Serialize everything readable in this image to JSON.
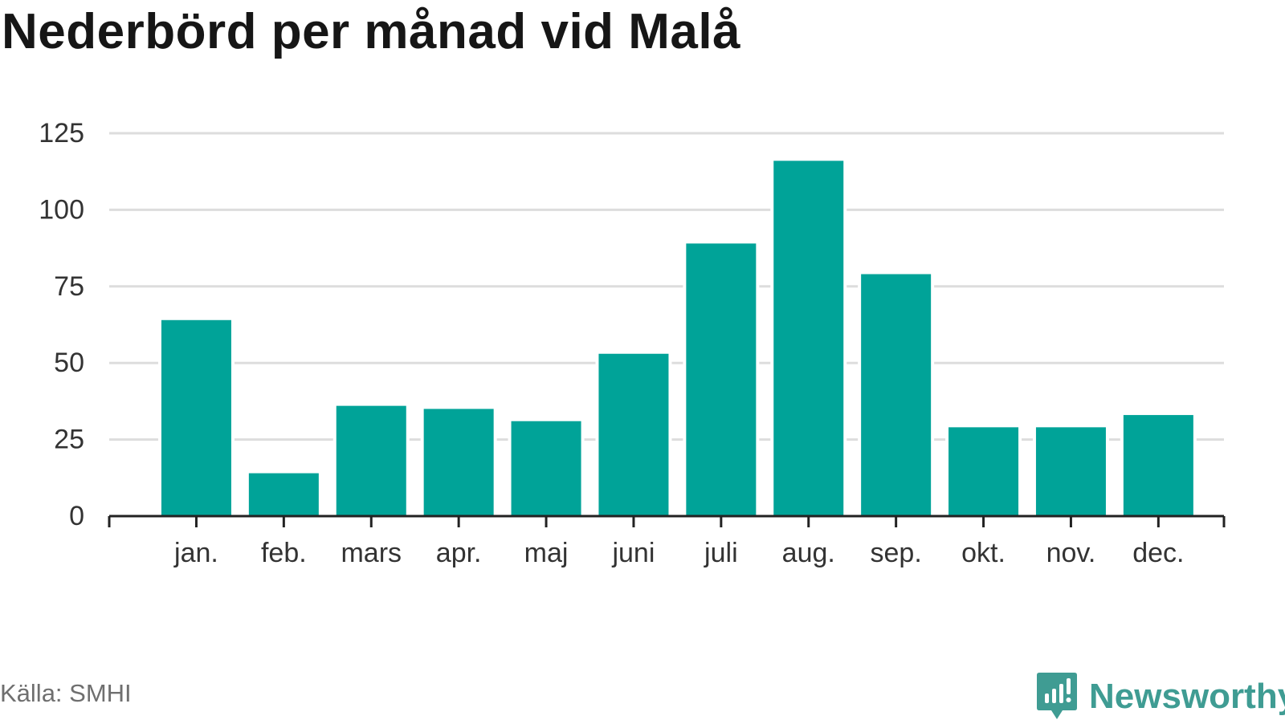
{
  "title": "Nederbörd per månad vid Malå",
  "source": "Källa: SMHI",
  "brand": {
    "name": "Newsworthy",
    "icon": "newsworthy-logo-icon",
    "color": "#3f9c93"
  },
  "colors": {
    "bar": "#00a398",
    "grid": "#dddddd",
    "axis": "#222222",
    "text": "#333333"
  },
  "chart_data": {
    "type": "bar",
    "categories": [
      "jan.",
      "feb.",
      "mars",
      "apr.",
      "maj",
      "juni",
      "juli",
      "aug.",
      "sep.",
      "okt.",
      "nov.",
      "dec."
    ],
    "values": [
      64,
      14,
      36,
      35,
      31,
      53,
      89,
      116,
      79,
      29,
      29,
      33
    ],
    "yticks": [
      0,
      25,
      50,
      75,
      100,
      125
    ],
    "ylim": [
      0,
      125
    ],
    "xlabel": "",
    "ylabel": "",
    "grid": true,
    "legend": "none"
  }
}
